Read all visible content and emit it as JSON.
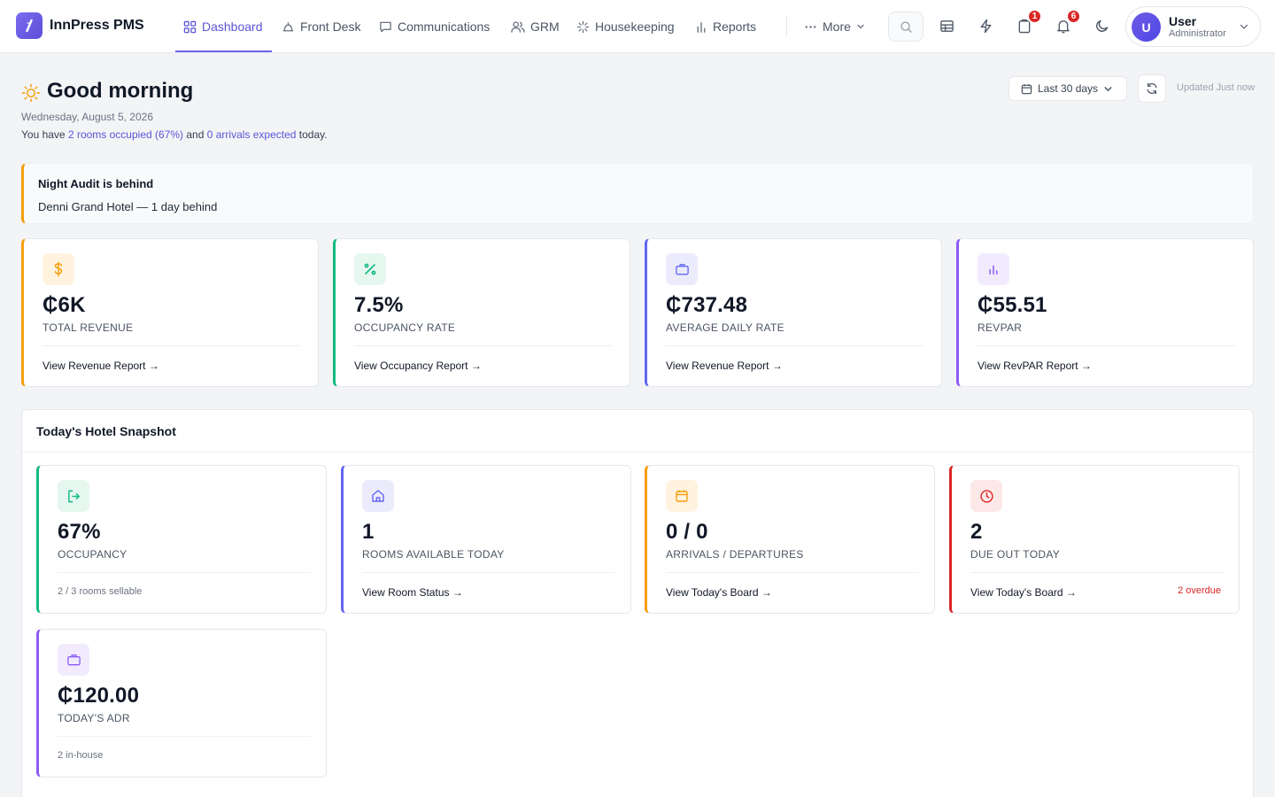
{
  "app": {
    "name": "InnPress PMS"
  },
  "nav": {
    "dashboard": "Dashboard",
    "front_desk": "Front Desk",
    "communications": "Communications",
    "grm": "GRM",
    "housekeeping": "Housekeeping",
    "reports": "Reports",
    "more": "More"
  },
  "toolbar": {
    "notifications_badge": "1",
    "alerts_badge": "6"
  },
  "user": {
    "initial": "U",
    "name": "User",
    "role": "Administrator"
  },
  "greeting": {
    "title": "Good morning",
    "date": "Wednesday, August 5, 2026",
    "summary_prefix": "You have",
    "rooms_link": "2 rooms occupied (67%)",
    "summary_and": "and",
    "arrivals_link": "0 arrivals expected",
    "summary_suffix": "today."
  },
  "controls": {
    "date_range": "Last 30 days",
    "updated": "Updated Just now"
  },
  "alert": {
    "title": "Night Audit is behind",
    "text": "Denni Grand Hotel — 1 day behind"
  },
  "kpis": [
    {
      "value": "₵6K",
      "label": "Total Revenue",
      "link": "View Revenue Report →",
      "icon": "dollar-icon",
      "accent": "#f59e0b"
    },
    {
      "value": "7.5%",
      "label": "Occupancy Rate",
      "link": "View Occupancy Report →",
      "icon": "percent-icon",
      "accent": "#10b981"
    },
    {
      "value": "₵737.48",
      "label": "Average Daily Rate",
      "link": "View Revenue Report →",
      "icon": "briefcase-icon",
      "accent": "#6366f1"
    },
    {
      "value": "₵55.51",
      "label": "RevPAR",
      "link": "View RevPAR Report →",
      "icon": "bar-chart-icon",
      "accent": "#8b5cf6"
    }
  ],
  "snapshot": {
    "title": "Today's Hotel Snapshot",
    "cards": [
      {
        "value": "67%",
        "label": "Occupancy",
        "note": "2 / 3 rooms sellable",
        "icon": "sign-in-icon",
        "accent": "#10b981"
      },
      {
        "value": "1",
        "label": "Rooms Available Today",
        "link": "View Room Status →",
        "icon": "home-icon",
        "accent": "#6366f1"
      },
      {
        "value": "0 / 0",
        "label": "Arrivals / Departures",
        "link": "View Today's Board →",
        "icon": "calendar-icon",
        "accent": "#f59e0b"
      },
      {
        "value": "2",
        "label": "Due Out Today",
        "link": "View Today's Board →",
        "overdue": "2 overdue",
        "icon": "clock-icon",
        "accent": "#dc2626"
      },
      {
        "value": "₵120.00",
        "label": "Today's ADR",
        "note": "2 in-house",
        "icon": "briefcase-icon",
        "accent": "#8b5cf6"
      }
    ]
  }
}
